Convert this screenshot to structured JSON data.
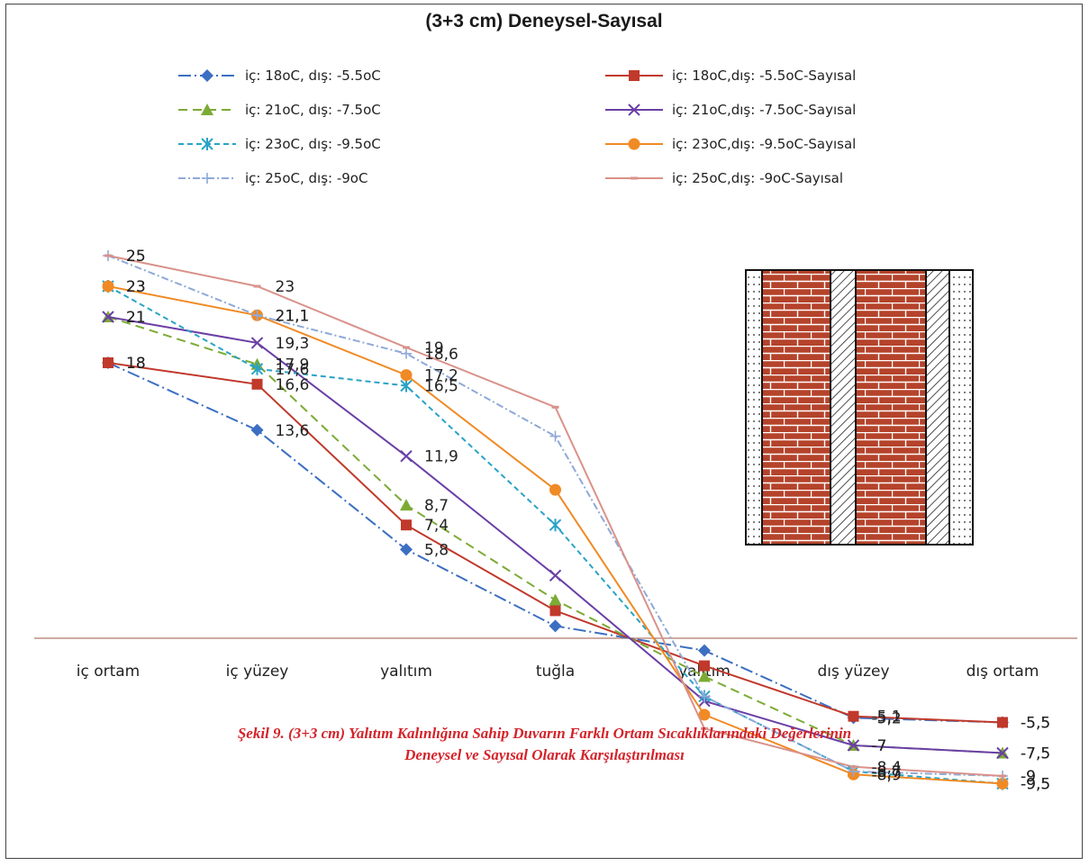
{
  "chart_data": {
    "type": "line",
    "title": "(3+3 cm) Deneysel-Sayısal",
    "categories": [
      "iç ortam",
      "iç yüzey",
      "yalıtım",
      "tuğla",
      "yalıtım",
      "dış yüzey",
      "dış ortam"
    ],
    "series": [
      {
        "name": "iç: 18oC, dış: -5.5oC",
        "color": "#3c6fc2",
        "dash": "14,4,2,4",
        "marker": "diamond",
        "values": [
          18,
          13.6,
          5.8,
          0.8,
          -0.8,
          -5.2,
          -5.5
        ]
      },
      {
        "name": "iç: 18oC,dış: -5.5oC-Sayısal",
        "color": "#c0392b",
        "dash": "",
        "marker": "square",
        "values": [
          18,
          16.6,
          7.4,
          1.8,
          -1.8,
          -5.1,
          -5.5
        ]
      },
      {
        "name": "iç: 21oC, dış: -7.5oC",
        "color": "#7cab35",
        "dash": "10,6",
        "marker": "triangle",
        "values": [
          21,
          17.9,
          8.7,
          2.5,
          -2.5,
          -7,
          -7.5
        ]
      },
      {
        "name": "iç: 21oC,dış: -7.5oC-Sayısal",
        "color": "#6a3fa6",
        "dash": "",
        "marker": "cross",
        "values": [
          21,
          19.3,
          11.9,
          4.1,
          -4.1,
          -7,
          -7.5
        ]
      },
      {
        "name": "iç: 23oC, dış: -9.5oC",
        "color": "#2aa3c6",
        "dash": "6,4",
        "marker": "star",
        "values": [
          23,
          17.6,
          16.5,
          7.4,
          -3.8,
          -8.7,
          -9.5
        ]
      },
      {
        "name": "iç: 23oC,dış: -9.5oC-Sayısal",
        "color": "#f08a24",
        "dash": "",
        "marker": "circle",
        "values": [
          23,
          21.1,
          17.2,
          9.7,
          -5.0,
          -8.9,
          -9.5
        ]
      },
      {
        "name": "iç: 25oC, dış: -9oC",
        "color": "#8fa9d8",
        "dash": "8,3,2,3",
        "marker": "plus",
        "values": [
          25,
          21.1,
          18.6,
          13.2,
          -3.8,
          -8.7,
          -9
        ]
      },
      {
        "name": "iç: 25oC,dış: -9oC-Sayısal",
        "color": "#d9928a",
        "dash": "",
        "marker": "dash",
        "values": [
          25,
          23,
          19,
          15.1,
          -5.9,
          -8.4,
          -9
        ]
      }
    ],
    "data_labels": [
      {
        "series": 0,
        "point": 0,
        "text": "18"
      },
      {
        "series": 0,
        "point": 1,
        "text": "13,6"
      },
      {
        "series": 0,
        "point": 2,
        "text": "5,8"
      },
      {
        "series": 0,
        "point": 5,
        "text": "-5,2"
      },
      {
        "series": 0,
        "point": 6,
        "text": "-5,5"
      },
      {
        "series": 1,
        "point": 0,
        "text": "18"
      },
      {
        "series": 1,
        "point": 1,
        "text": "16,6"
      },
      {
        "series": 1,
        "point": 2,
        "text": "7,4"
      },
      {
        "series": 1,
        "point": 5,
        "text": "-5,1"
      },
      {
        "series": 1,
        "point": 6,
        "text": "-5,5"
      },
      {
        "series": 2,
        "point": 0,
        "text": "21"
      },
      {
        "series": 2,
        "point": 1,
        "text": "17,9"
      },
      {
        "series": 2,
        "point": 2,
        "text": "8,7"
      },
      {
        "series": 2,
        "point": 5,
        "text": "-7"
      },
      {
        "series": 2,
        "point": 6,
        "text": "-7,5"
      },
      {
        "series": 3,
        "point": 0,
        "text": "21"
      },
      {
        "series": 3,
        "point": 1,
        "text": "19,3"
      },
      {
        "series": 3,
        "point": 2,
        "text": "11,9"
      },
      {
        "series": 3,
        "point": 5,
        "text": "-7"
      },
      {
        "series": 3,
        "point": 6,
        "text": "-7,5"
      },
      {
        "series": 4,
        "point": 0,
        "text": "23"
      },
      {
        "series": 4,
        "point": 1,
        "text": "17,6"
      },
      {
        "series": 4,
        "point": 2,
        "text": "16,5"
      },
      {
        "series": 4,
        "point": 5,
        "text": "-8,7"
      },
      {
        "series": 4,
        "point": 6,
        "text": "-9,5"
      },
      {
        "series": 5,
        "point": 0,
        "text": "23"
      },
      {
        "series": 5,
        "point": 1,
        "text": "21,1"
      },
      {
        "series": 5,
        "point": 2,
        "text": "17,2"
      },
      {
        "series": 5,
        "point": 5,
        "text": "-8,9"
      },
      {
        "series": 5,
        "point": 6,
        "text": "-9,5"
      },
      {
        "series": 6,
        "point": 0,
        "text": "25"
      },
      {
        "series": 6,
        "point": 1,
        "text": "21,1"
      },
      {
        "series": 6,
        "point": 2,
        "text": "18,6"
      },
      {
        "series": 6,
        "point": 5,
        "text": "-8,7"
      },
      {
        "series": 6,
        "point": 6,
        "text": "-9"
      },
      {
        "series": 7,
        "point": 0,
        "text": "25"
      },
      {
        "series": 7,
        "point": 1,
        "text": "23"
      },
      {
        "series": 7,
        "point": 2,
        "text": "19"
      },
      {
        "series": 7,
        "point": 5,
        "text": "-8,4"
      },
      {
        "series": 7,
        "point": 6,
        "text": "-9"
      }
    ],
    "legend_position": "top",
    "grid": false,
    "xlabel": "",
    "ylabel": ""
  },
  "wall_diagram": {
    "layers": [
      "plaster",
      "brick",
      "insulation",
      "brick",
      "insulation",
      "plaster"
    ],
    "colors": {
      "brick": "#b5432b",
      "mortar": "#ffffff"
    }
  },
  "caption": {
    "line1": "Şekil 9. (3+3 cm) Yalıtım Kalınlığına Sahip Duvarın Farklı Ortam Sıcaklıklarındaki Değerlerinin",
    "line2": "Deneysel ve Sayısal Olarak Karşılaştırılması"
  }
}
